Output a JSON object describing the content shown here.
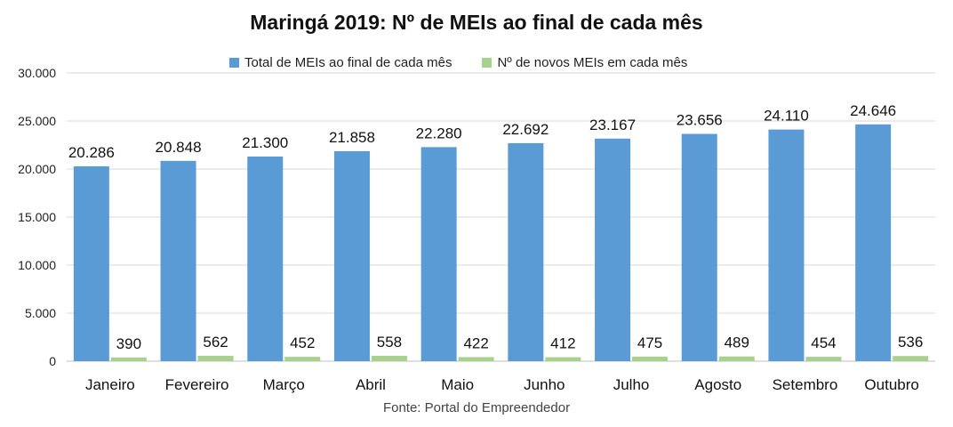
{
  "colors": {
    "total": "#5b9bd5",
    "novos": "#a9d18e",
    "grid": "#d9d9d9",
    "axis": "#bfbfbf"
  },
  "chart_data": {
    "type": "bar",
    "title": "Maringá 2019: Nº de MEIs ao final de cada mês",
    "source": "Fonte: Portal do Empreendedor",
    "legend_position": "top-center",
    "grid": true,
    "ylim": [
      0,
      30000
    ],
    "yticks": [
      0,
      5000,
      10000,
      15000,
      20000,
      25000,
      30000
    ],
    "ytick_labels": [
      "0",
      "5.000",
      "10.000",
      "15.000",
      "20.000",
      "25.000",
      "30.000"
    ],
    "categories": [
      "Janeiro",
      "Fevereiro",
      "Março",
      "Abril",
      "Maio",
      "Junho",
      "Julho",
      "Agosto",
      "Setembro",
      "Outubro"
    ],
    "series": [
      {
        "name": "Total de MEIs ao final de cada mês",
        "values": [
          20286,
          20848,
          21300,
          21858,
          22280,
          22692,
          23167,
          23656,
          24110,
          24646
        ],
        "labels": [
          "20.286",
          "20.848",
          "21.300",
          "21.858",
          "22.280",
          "22.692",
          "23.167",
          "23.656",
          "24.110",
          "24.646"
        ]
      },
      {
        "name": "Nº de novos MEIs em cada mês",
        "values": [
          390,
          562,
          452,
          558,
          422,
          412,
          475,
          489,
          454,
          536
        ],
        "labels": [
          "390",
          "562",
          "452",
          "558",
          "422",
          "412",
          "475",
          "489",
          "454",
          "536"
        ]
      }
    ]
  }
}
